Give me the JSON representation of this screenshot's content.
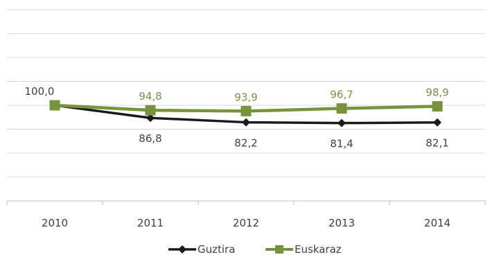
{
  "chart_data": {
    "type": "line",
    "title": "",
    "xlabel": "",
    "ylabel": "",
    "ylim": [
      0,
      200
    ],
    "grid": true,
    "legend_position": "bottom",
    "categories": [
      "2010",
      "2011",
      "2012",
      "2013",
      "2014"
    ],
    "series": [
      {
        "name": "Guztira",
        "color": "#1a1a1a",
        "marker": "diamond",
        "values": [
          100.0,
          86.8,
          82.2,
          81.4,
          82.1
        ],
        "labels": [
          "100,0",
          "86,8",
          "82,2",
          "81,4",
          "82,1"
        ]
      },
      {
        "name": "Euskaraz",
        "color": "#77933c",
        "marker": "square",
        "values": [
          100.0,
          94.8,
          93.9,
          96.7,
          98.9
        ],
        "labels": [
          "100,0",
          "94,8",
          "93,9",
          "96,7",
          "98,9"
        ]
      }
    ]
  }
}
